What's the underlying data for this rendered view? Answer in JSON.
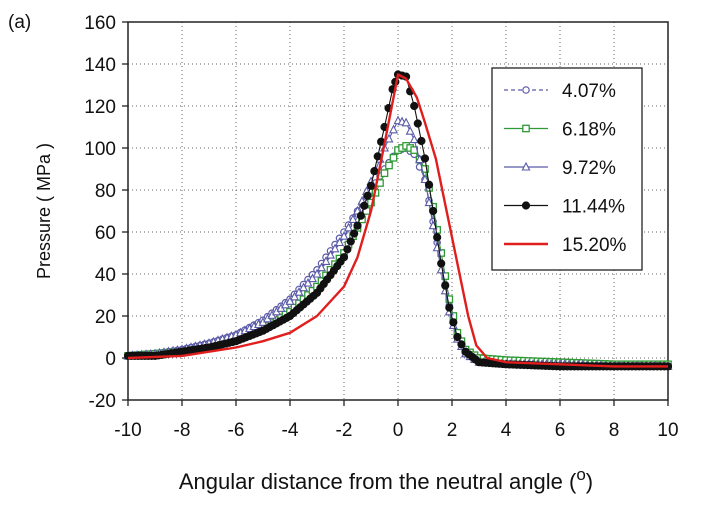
{
  "chart_data": {
    "type": "line",
    "panel_label": "(a)",
    "title": "",
    "xlabel": "Angular distance from the neutral angle (",
    "xlabel_unit": "o",
    "xlabel_close": ")",
    "ylabel": "Pressure ( MPa )",
    "xlim": [
      -10,
      10
    ],
    "ylim": [
      -20,
      160
    ],
    "xticks": [
      -10,
      -8,
      -6,
      -4,
      -2,
      0,
      2,
      4,
      6,
      8,
      10
    ],
    "yticks": [
      -20,
      0,
      20,
      40,
      60,
      80,
      100,
      120,
      140,
      160
    ],
    "grid": "dotted-major",
    "legend_position": "right",
    "series": [
      {
        "name": "4.07%",
        "color": "#5a5aa8",
        "line_style": "dashed",
        "marker": "open-circle",
        "points": [
          [
            -10,
            1
          ],
          [
            -9,
            2
          ],
          [
            -8,
            4
          ],
          [
            -7,
            7
          ],
          [
            -6,
            11
          ],
          [
            -5,
            18
          ],
          [
            -4,
            28
          ],
          [
            -3,
            42
          ],
          [
            -2,
            60
          ],
          [
            -1.5,
            70
          ],
          [
            -1,
            80
          ],
          [
            -0.5,
            90
          ],
          [
            0,
            99
          ],
          [
            0.3,
            100
          ],
          [
            0.6,
            97
          ],
          [
            1,
            85
          ],
          [
            1.3,
            65
          ],
          [
            1.6,
            45
          ],
          [
            1.9,
            25
          ],
          [
            2.2,
            10
          ],
          [
            2.5,
            3
          ],
          [
            3,
            -1
          ],
          [
            4,
            -2
          ],
          [
            6,
            -3
          ],
          [
            8,
            -3
          ],
          [
            10,
            -3
          ]
        ]
      },
      {
        "name": "6.18%",
        "color": "#2e9a36",
        "line_style": "solid",
        "marker": "open-square",
        "points": [
          [
            -10,
            1
          ],
          [
            -9,
            2
          ],
          [
            -8,
            3
          ],
          [
            -7,
            5
          ],
          [
            -6,
            9
          ],
          [
            -5,
            14
          ],
          [
            -4,
            22
          ],
          [
            -3,
            34
          ],
          [
            -2,
            50
          ],
          [
            -1.5,
            62
          ],
          [
            -1,
            74
          ],
          [
            -0.5,
            88
          ],
          [
            0,
            99
          ],
          [
            0.3,
            101
          ],
          [
            0.6,
            99
          ],
          [
            1,
            90
          ],
          [
            1.3,
            72
          ],
          [
            1.6,
            50
          ],
          [
            1.9,
            28
          ],
          [
            2.2,
            12
          ],
          [
            2.5,
            4
          ],
          [
            3,
            0
          ],
          [
            4,
            -1
          ],
          [
            6,
            -2
          ],
          [
            8,
            -3
          ],
          [
            10,
            -3
          ]
        ]
      },
      {
        "name": "9.72%",
        "color": "#5a5aa8",
        "line_style": "solid",
        "marker": "open-triangle",
        "points": [
          [
            -10,
            1
          ],
          [
            -9,
            2
          ],
          [
            -8,
            4
          ],
          [
            -7,
            7
          ],
          [
            -6,
            11
          ],
          [
            -5,
            17
          ],
          [
            -4,
            27
          ],
          [
            -3,
            40
          ],
          [
            -2,
            58
          ],
          [
            -1.5,
            70
          ],
          [
            -1,
            84
          ],
          [
            -0.5,
            100
          ],
          [
            0,
            113
          ],
          [
            0.3,
            112
          ],
          [
            0.6,
            104
          ],
          [
            1,
            85
          ],
          [
            1.3,
            63
          ],
          [
            1.6,
            42
          ],
          [
            1.9,
            22
          ],
          [
            2.2,
            9
          ],
          [
            2.5,
            2
          ],
          [
            3,
            -2
          ],
          [
            4,
            -3
          ],
          [
            6,
            -3
          ],
          [
            8,
            -4
          ],
          [
            10,
            -4
          ]
        ]
      },
      {
        "name": "11.44%",
        "color": "#111111",
        "line_style": "solid",
        "marker": "filled-circle",
        "points": [
          [
            -10,
            1
          ],
          [
            -9,
            1
          ],
          [
            -8,
            3
          ],
          [
            -7,
            5
          ],
          [
            -6,
            8
          ],
          [
            -5,
            13
          ],
          [
            -4,
            20
          ],
          [
            -3,
            31
          ],
          [
            -2,
            48
          ],
          [
            -1.5,
            63
          ],
          [
            -1,
            82
          ],
          [
            -0.5,
            110
          ],
          [
            -0.2,
            128
          ],
          [
            0,
            135
          ],
          [
            0.3,
            134
          ],
          [
            0.6,
            120
          ],
          [
            1,
            95
          ],
          [
            1.3,
            70
          ],
          [
            1.6,
            45
          ],
          [
            1.9,
            24
          ],
          [
            2.2,
            10
          ],
          [
            2.5,
            3
          ],
          [
            3,
            -2
          ],
          [
            4,
            -3
          ],
          [
            6,
            -4
          ],
          [
            8,
            -4
          ],
          [
            10,
            -4
          ]
        ]
      },
      {
        "name": "15.20%",
        "color": "#e01e1e",
        "line_style": "solid",
        "marker": "none",
        "points": [
          [
            -10,
            0
          ],
          [
            -9,
            0.5
          ],
          [
            -8,
            1
          ],
          [
            -7,
            3
          ],
          [
            -6,
            5
          ],
          [
            -5,
            8
          ],
          [
            -4,
            12
          ],
          [
            -3,
            20
          ],
          [
            -2,
            34
          ],
          [
            -1.5,
            48
          ],
          [
            -1,
            70
          ],
          [
            -0.5,
            102
          ],
          [
            0,
            135
          ],
          [
            0.3,
            133
          ],
          [
            0.7,
            124
          ],
          [
            1,
            112
          ],
          [
            1.4,
            95
          ],
          [
            1.8,
            70
          ],
          [
            2.2,
            45
          ],
          [
            2.6,
            20
          ],
          [
            2.9,
            6
          ],
          [
            3.3,
            0
          ],
          [
            4,
            -2
          ],
          [
            6,
            -3
          ],
          [
            8,
            -4
          ],
          [
            10,
            -4
          ]
        ]
      }
    ]
  }
}
